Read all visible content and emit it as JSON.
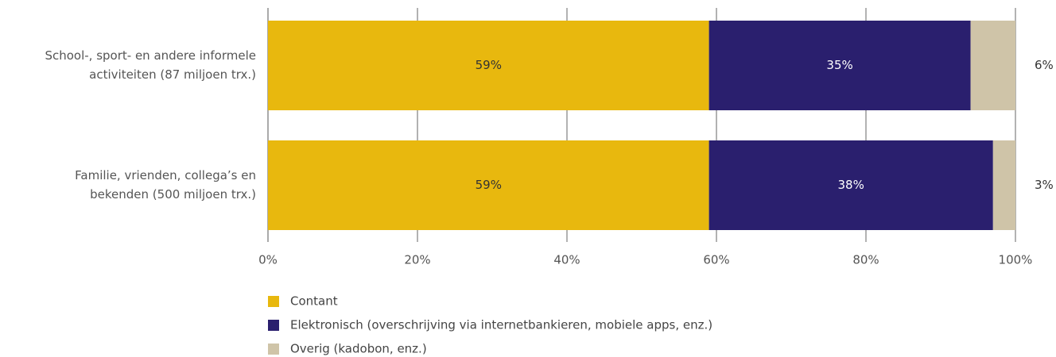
{
  "chart_data": {
    "type": "stacked-barh",
    "categories": [
      [
        "School-, sport- en andere informele",
        "activiteiten (87 miljoen trx.)"
      ],
      [
        "Familie, vrienden, collega’s en",
        "bekenden (500 miljoen trx.)"
      ]
    ],
    "series": [
      {
        "name": "Contant",
        "color": "#e8b80e",
        "values": [
          59,
          59
        ],
        "value_labels": [
          "59%",
          "59%"
        ]
      },
      {
        "name": "Elektronisch (overschrijving via internetbankieren, mobiele apps, enz.)",
        "color": "#2a1f6e",
        "values": [
          35,
          38
        ],
        "value_labels": [
          "35%",
          "38%"
        ]
      },
      {
        "name": "Overig (kadobon, enz.)",
        "color": "#cfc4a8",
        "values": [
          6,
          3
        ],
        "value_labels": [
          "6%",
          "3%"
        ]
      }
    ],
    "xlim": [
      0,
      100
    ],
    "xticks": [
      {
        "value": 0,
        "label": "0%"
      },
      {
        "value": 20,
        "label": "20%"
      },
      {
        "value": 40,
        "label": "40%"
      },
      {
        "value": 60,
        "label": "60%"
      },
      {
        "value": 80,
        "label": "80%"
      },
      {
        "value": 100,
        "label": "100%"
      }
    ],
    "grid": true,
    "legend": "bottom"
  }
}
